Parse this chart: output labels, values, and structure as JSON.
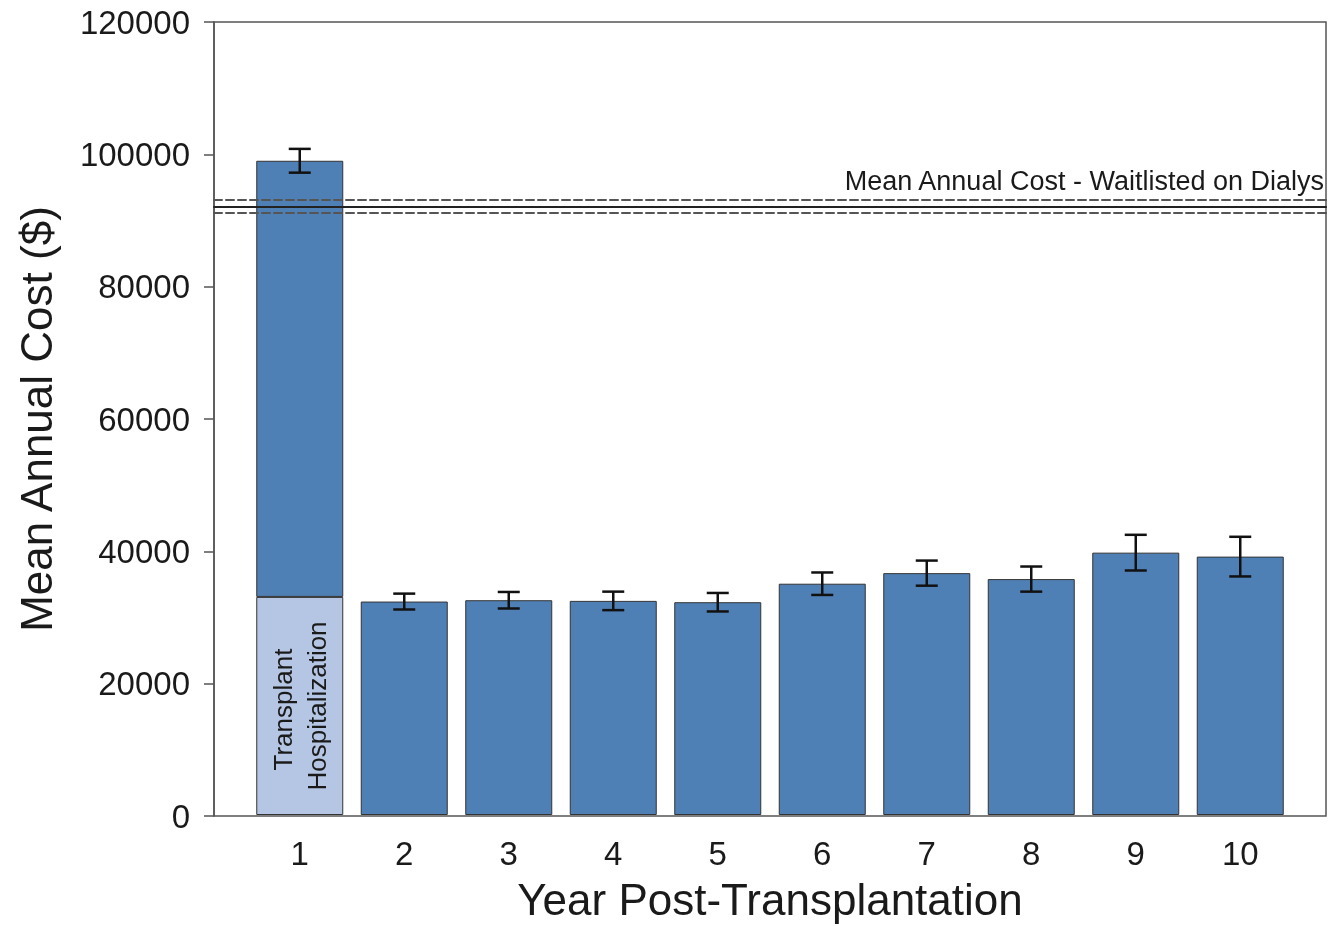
{
  "chart_data": {
    "type": "bar",
    "xlabel": "Year Post-Transplantation",
    "ylabel": "Mean Annual Cost ($)",
    "categories": [
      "1",
      "2",
      "3",
      "4",
      "5",
      "6",
      "7",
      "8",
      "9",
      "10"
    ],
    "stacked": true,
    "series": [
      {
        "name": "Transplant Hospitalization",
        "color": "#b4c6e4",
        "values": [
          33000,
          null,
          null,
          null,
          null,
          null,
          null,
          null,
          null,
          null
        ]
      },
      {
        "color": "#4f80b5",
        "values": [
          66000,
          32300,
          32500,
          32400,
          32200,
          35000,
          36600,
          35700,
          39700,
          39100
        ],
        "errors": [
          1800,
          1200,
          1250,
          1400,
          1400,
          1700,
          1900,
          1900,
          2700,
          3000
        ]
      }
    ],
    "ylim": [
      0,
      120000
    ],
    "yticks": [
      0,
      20000,
      40000,
      60000,
      80000,
      100000,
      120000
    ],
    "ref_lines": [
      {
        "axis": "y",
        "value": 92100,
        "label": "Mean Annual Cost - Waitlisted on Dialys",
        "color": "#222222",
        "line_style": "solid"
      },
      {
        "axis": "y",
        "value": 93200,
        "color": "#555555",
        "line_style": "dashed"
      },
      {
        "axis": "y",
        "value": 91200,
        "color": "#555555",
        "line_style": "dashed"
      }
    ]
  }
}
